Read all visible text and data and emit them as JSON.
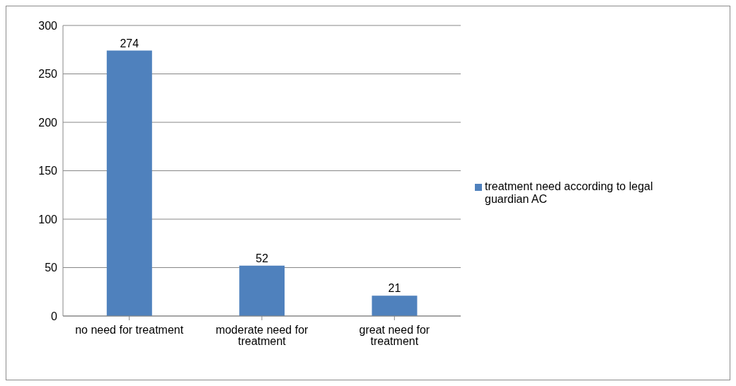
{
  "chart_data": {
    "type": "bar",
    "categories": [
      "no need for treatment",
      "moderate need for treatment",
      "great need for treatment"
    ],
    "series": [
      {
        "name": "treatment need according to legal guardian AC",
        "color": "#4f81bd",
        "values": [
          274,
          52,
          21
        ]
      }
    ],
    "ylim": [
      0,
      300
    ],
    "yticks": [
      0,
      50,
      100,
      150,
      200,
      250,
      300
    ],
    "grid": "y",
    "legend": "right",
    "data_labels": true
  }
}
